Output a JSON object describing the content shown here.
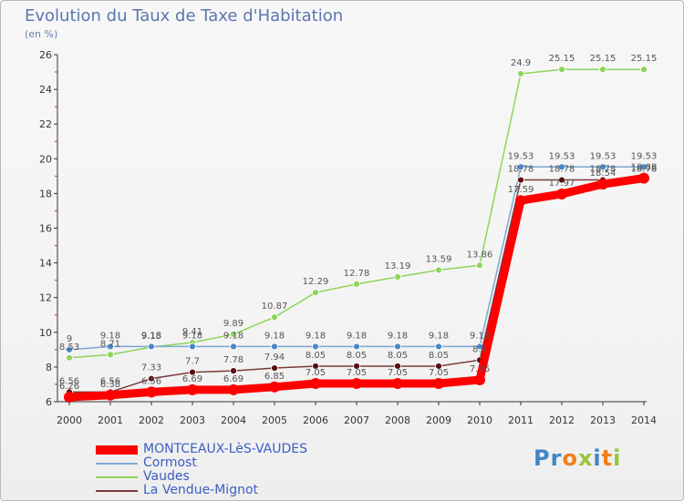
{
  "title": "Evolution du Taux de Taxe d'Habitation",
  "unit_label": "(en %)",
  "logo": {
    "text": "Proxiti",
    "letter_colors": [
      "#3f86c8",
      "#3f86c8",
      "#f07f1c",
      "#9ac43b",
      "#3f86c8",
      "#f07f1c",
      "#9ac43b"
    ]
  },
  "chart_data": {
    "type": "line",
    "title": "Evolution du Taux de Taxe d'Habitation",
    "ylabel": "(en %)",
    "x": [
      "2000",
      "2001",
      "2002",
      "2003",
      "2004",
      "2005",
      "2006",
      "2007",
      "2008",
      "2009",
      "2010",
      "2011",
      "2012",
      "2013",
      "2014"
    ],
    "ylim": [
      6,
      26
    ],
    "yticks": [
      6,
      8,
      10,
      12,
      14,
      16,
      18,
      20,
      22,
      24,
      26
    ],
    "grid": false,
    "legend_position": "bottom-left",
    "series": [
      {
        "name": "MONTCEAUX-LèS-VAUDES",
        "color": "#ff0000",
        "values": [
          6.26,
          6.38,
          6.56,
          6.69,
          6.69,
          6.85,
          7.05,
          7.05,
          7.05,
          7.05,
          7.26,
          17.59,
          17.97,
          18.54,
          18.88
        ]
      },
      {
        "name": "Cormost",
        "color": "#7ea7d3",
        "values": [
          9,
          9.18,
          9.18,
          9.18,
          9.18,
          9.18,
          9.18,
          9.18,
          9.18,
          9.18,
          9.18,
          19.53,
          19.53,
          19.53,
          19.53
        ]
      },
      {
        "name": "Vaudes",
        "color": "#8fd45a",
        "values": [
          8.53,
          8.71,
          9.15,
          9.41,
          9.89,
          10.87,
          12.29,
          12.78,
          13.19,
          13.59,
          13.86,
          24.9,
          25.15,
          25.15,
          25.15
        ]
      },
      {
        "name": "La Vendue-Mignot",
        "color": "#7a3a3a",
        "values": [
          6.56,
          6.56,
          7.33,
          7.7,
          7.78,
          7.94,
          8.05,
          8.05,
          8.05,
          8.05,
          8.4,
          18.78,
          18.78,
          18.78,
          18.78
        ]
      }
    ],
    "data_labels": [
      [
        "6.26",
        "6.38",
        "6.56",
        "6.69",
        "6.69",
        "6.85",
        "7.05",
        "7.05",
        "7.05",
        "7.05",
        "7.26",
        "17.59",
        "17.97",
        "18.54",
        "18.88"
      ],
      [
        "9",
        "9.18",
        "9.18",
        "9.18",
        "9.18",
        "9.18",
        "9.18",
        "9.18",
        "9.18",
        "9.18",
        "9.18",
        "19.53",
        "19.53",
        "19.53",
        "19.53"
      ],
      [
        "8.53",
        "8.71",
        "9.15",
        "9.41",
        "9.89",
        "10.87",
        "12.29",
        "12.78",
        "13.19",
        "13.59",
        "13.86",
        "24.9",
        "25.15",
        "25.15",
        "25.15"
      ],
      [
        "6.56",
        "6.56",
        "7.33",
        "7.7",
        "7.78",
        "7.94",
        "8.05",
        "8.05",
        "8.05",
        "8.05",
        "8.4",
        "18.78",
        "18.78",
        "18.78",
        "18.78"
      ]
    ]
  }
}
